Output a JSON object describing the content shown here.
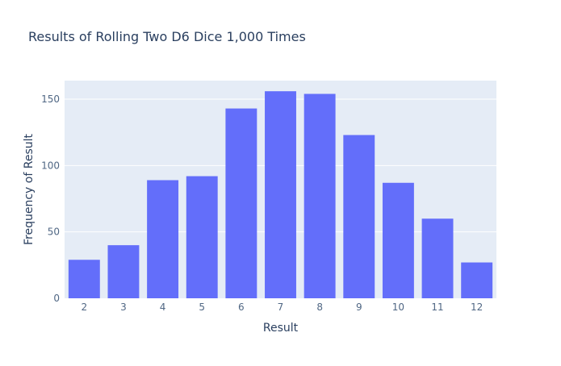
{
  "chart_data": {
    "type": "bar",
    "title": "Results of Rolling Two D6 Dice 1,000 Times",
    "xlabel": "Result",
    "ylabel": "Frequency of Result",
    "categories": [
      "2",
      "3",
      "4",
      "5",
      "6",
      "7",
      "8",
      "9",
      "10",
      "11",
      "12"
    ],
    "values": [
      29,
      40,
      89,
      92,
      143,
      156,
      154,
      123,
      87,
      60,
      27
    ],
    "ylim": [
      0,
      164
    ],
    "yticks": [
      0,
      50,
      100,
      150
    ],
    "grid": true,
    "legend": "none",
    "colors": {
      "bar": "#636efa",
      "plot_background": "#e5ecf6",
      "gridline": "#ffffff",
      "text": "#2a3f5f",
      "tick_text": "#506784"
    }
  }
}
